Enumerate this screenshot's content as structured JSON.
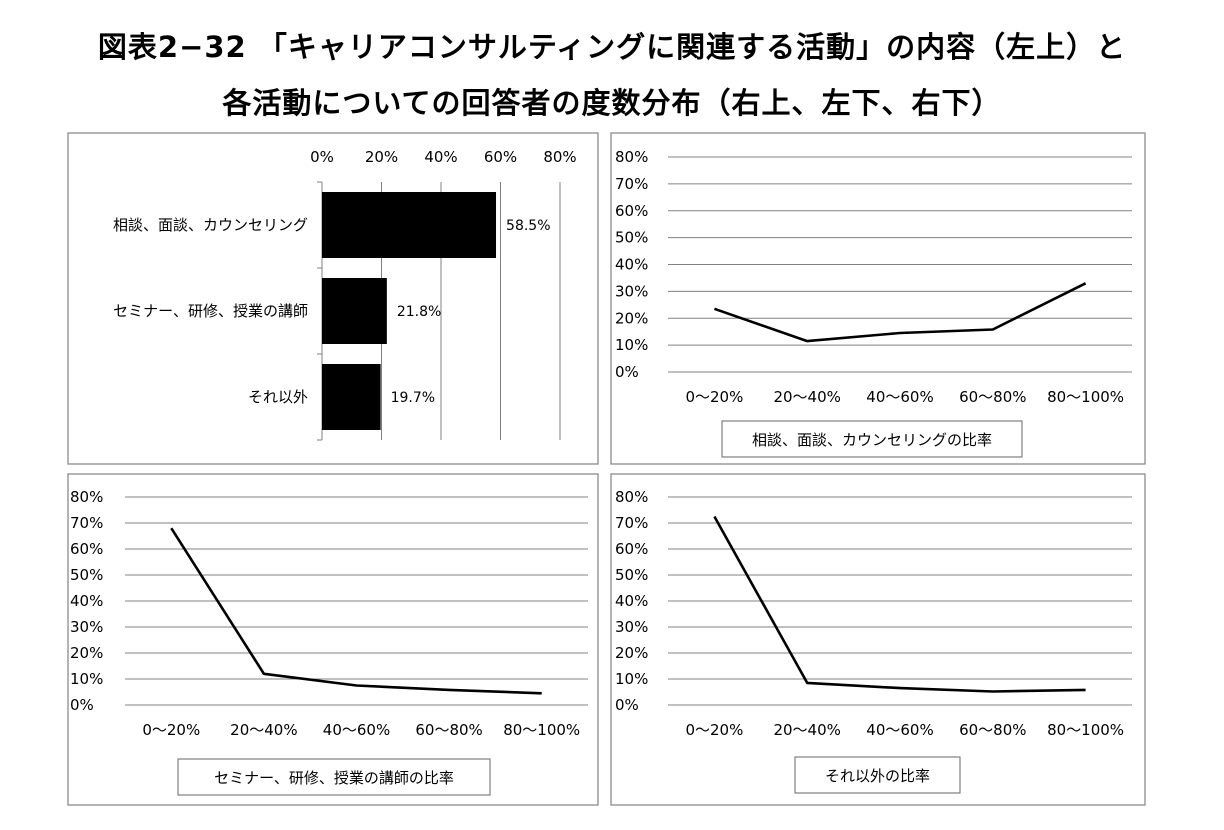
{
  "title": {
    "line1": "図表2−32 「キャリアコンサルティングに関連する活動」の内容（左上）と",
    "line2": "各活動についての回答者の度数分布（右上、左下、右下）"
  },
  "chart_data": [
    {
      "type": "bar",
      "orientation": "horizontal",
      "categories": [
        "相談、面談、カウンセリング",
        "セミナー、研修、授業の講師",
        "それ以外"
      ],
      "values": [
        58.5,
        21.8,
        19.7
      ],
      "value_labels": [
        "58.5%",
        "21.8%",
        "19.7%"
      ],
      "xlim": [
        0,
        80
      ],
      "xticks": [
        "0%",
        "20%",
        "40%",
        "60%",
        "80%"
      ],
      "axis_position": "top",
      "grid": true,
      "color": "#000000"
    },
    {
      "type": "line",
      "categories": [
        "0〜20%",
        "20〜40%",
        "40〜60%",
        "60〜80%",
        "80〜100%"
      ],
      "values": [
        23.5,
        11.5,
        14.5,
        15.8,
        33
      ],
      "ylim": [
        0,
        80
      ],
      "yticks": [
        "0%",
        "10%",
        "20%",
        "30%",
        "40%",
        "50%",
        "60%",
        "70%",
        "80%"
      ],
      "xlabel": "相談、面談、カウンセリングの比率",
      "grid": true,
      "color": "#000000"
    },
    {
      "type": "line",
      "categories": [
        "0〜20%",
        "20〜40%",
        "40〜60%",
        "60〜80%",
        "80〜100%"
      ],
      "values": [
        68,
        12,
        7.5,
        5.8,
        4.5
      ],
      "ylim": [
        0,
        80
      ],
      "yticks": [
        "0%",
        "10%",
        "20%",
        "30%",
        "40%",
        "50%",
        "60%",
        "70%",
        "80%"
      ],
      "xlabel": "セミナー、研修、授業の講師の比率",
      "grid": true,
      "color": "#000000"
    },
    {
      "type": "line",
      "categories": [
        "0〜20%",
        "20〜40%",
        "40〜60%",
        "60〜80%",
        "80〜100%"
      ],
      "values": [
        72.5,
        8.5,
        6.5,
        5.2,
        5.8
      ],
      "ylim": [
        0,
        80
      ],
      "yticks": [
        "0%",
        "10%",
        "20%",
        "30%",
        "40%",
        "50%",
        "60%",
        "70%",
        "80%"
      ],
      "xlabel": "それ以外の比率",
      "grid": true,
      "color": "#000000"
    }
  ]
}
